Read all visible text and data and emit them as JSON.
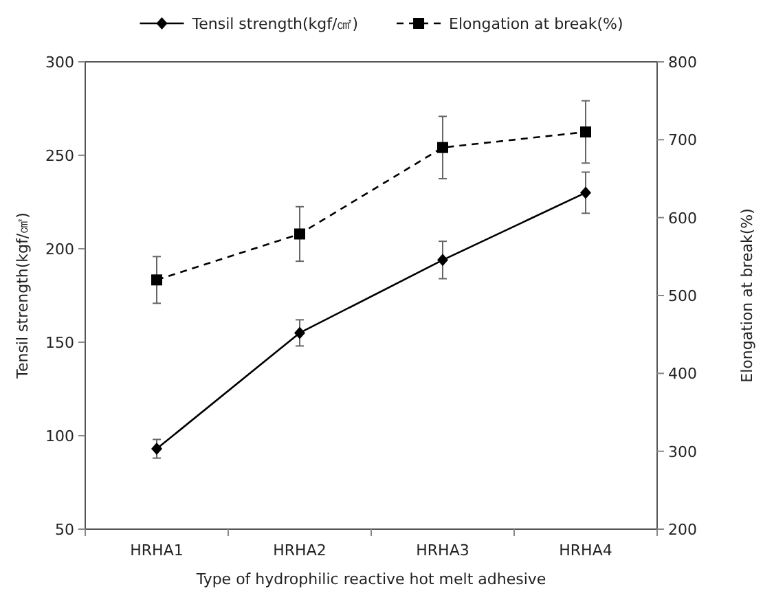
{
  "chart_data": {
    "type": "line",
    "xlabel": "Type of hydrophilic reactive hot melt adhesive",
    "ylabel": "Tensil strength(kgf/㎠)",
    "y2label": "Elongation at break(%)",
    "categories": [
      "HRHA1",
      "HRHA2",
      "HRHA3",
      "HRHA4"
    ],
    "series": [
      {
        "name": "Tensil strength(kgf/㎠)",
        "color": "#000000",
        "values": [
          93,
          155,
          194,
          230
        ],
        "errors": [
          5,
          7,
          10,
          11
        ],
        "marker": "diamond",
        "line_style": "solid"
      },
      {
        "name": "Elongation at break(%)",
        "color": "#000000",
        "values": [
          520,
          579,
          690,
          710
        ],
        "errors": [
          30,
          35,
          40,
          40
        ],
        "marker": "square",
        "line_style": "dashed",
        "axis": "y2"
      }
    ],
    "ylim": [
      50,
      300
    ],
    "yticks": [
      50,
      100,
      150,
      200,
      250,
      300
    ],
    "y2lim": [
      200,
      800
    ],
    "y2ticks": [
      200,
      300,
      400,
      500,
      600,
      700,
      800
    ],
    "grid": false,
    "legend": "top"
  }
}
